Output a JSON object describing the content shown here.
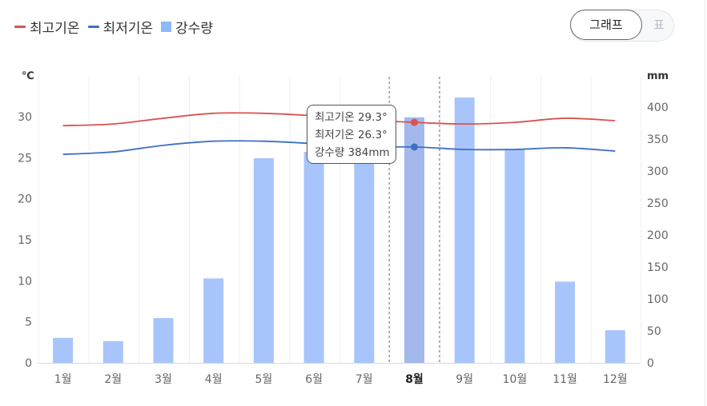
{
  "legend": {
    "max_temp": "최고기온",
    "min_temp": "최저기온",
    "precip": "강수량"
  },
  "toggle": {
    "graph_label": "그래프",
    "table_label": "표"
  },
  "tooltip": {
    "line1": "최고기온 29.3°",
    "line2": "최저기온 26.3°",
    "line3": "강수량 384mm"
  },
  "colors": {
    "max_temp": "#d9534f",
    "min_temp": "#3f6fc5",
    "precip": "#a8c5fb",
    "precip_selected": "#a3b9ec"
  },
  "chart_data": {
    "type": "bar+line",
    "categories": [
      "1월",
      "2월",
      "3월",
      "4월",
      "5월",
      "6월",
      "7월",
      "8월",
      "9월",
      "10월",
      "11월",
      "12월"
    ],
    "selected_index": 7,
    "series": [
      {
        "name": "최고기온",
        "type": "line",
        "axis": "left",
        "values": [
          28.9,
          29.1,
          29.8,
          30.4,
          30.4,
          30.1,
          29.6,
          29.3,
          29.1,
          29.3,
          29.8,
          29.5
        ]
      },
      {
        "name": "최저기온",
        "type": "line",
        "axis": "left",
        "values": [
          25.4,
          25.7,
          26.5,
          27.0,
          27.0,
          26.7,
          26.3,
          26.3,
          26.0,
          26.0,
          26.2,
          25.8
        ]
      },
      {
        "name": "강수량",
        "type": "bar",
        "axis": "right",
        "values": [
          39,
          34,
          70,
          132,
          320,
          330,
          335,
          384,
          415,
          333,
          127,
          51
        ]
      }
    ],
    "y_left": {
      "label": "℃",
      "ticks": [
        0,
        5,
        10,
        15,
        20,
        25,
        30
      ],
      "range": [
        0,
        34
      ]
    },
    "y_right": {
      "label": "mm",
      "ticks": [
        0,
        50,
        100,
        150,
        200,
        250,
        300,
        350,
        400
      ],
      "range": [
        0,
        435
      ]
    },
    "grid": true,
    "legend_position": "top-left"
  }
}
